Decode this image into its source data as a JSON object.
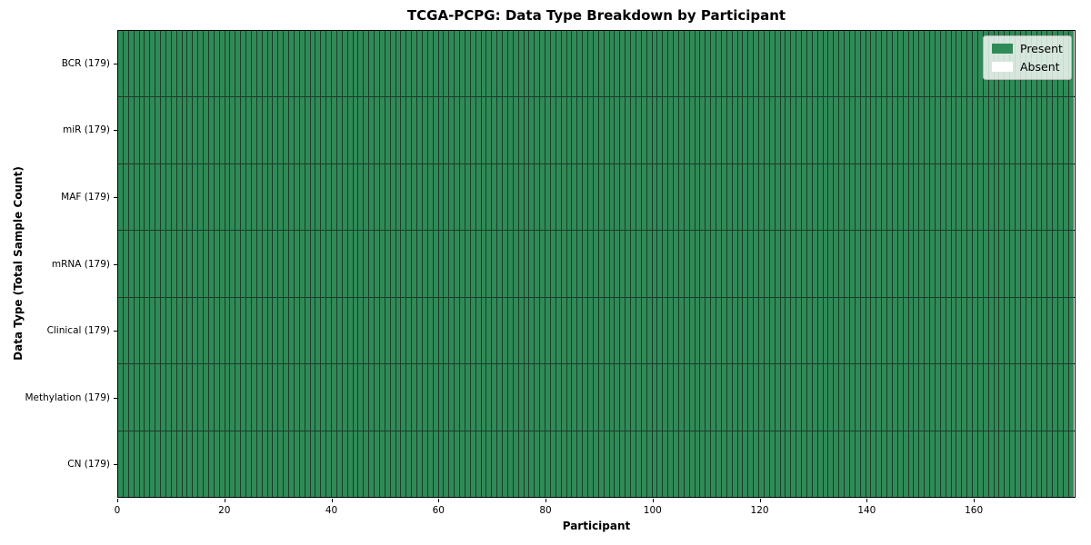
{
  "figure": {
    "title": "TCGA-PCPG: Data Type Breakdown by Participant",
    "xlabel": "Participant",
    "ylabel": "Data Type (Total Sample Count)",
    "background": "#ffffff"
  },
  "legend": {
    "position": "upper right",
    "entries": [
      {
        "label": "Present",
        "color": "#2e8b57"
      },
      {
        "label": "Absent",
        "color": "#ffffff"
      }
    ]
  },
  "axes": {
    "x_ticks": [
      0,
      20,
      40,
      60,
      80,
      100,
      120,
      140,
      160
    ],
    "y_tick_labels": [
      "BCR (179)",
      "miR (179)",
      "MAF (179)",
      "mRNA (179)",
      "Clinical (179)",
      "Methylation (179)",
      "CN (179)"
    ]
  },
  "chart_data": {
    "type": "heatmap",
    "title": "TCGA-PCPG: Data Type Breakdown by Participant",
    "xlabel": "Participant",
    "ylabel": "Data Type (Total Sample Count)",
    "categories": [
      "BCR (179)",
      "miR (179)",
      "MAF (179)",
      "mRNA (179)",
      "Clinical (179)",
      "Methylation (179)",
      "CN (179)"
    ],
    "participant_count": 179,
    "xlim": [
      0,
      179
    ],
    "x_tick_values": [
      0,
      20,
      40,
      60,
      80,
      100,
      120,
      140,
      160
    ],
    "series": [
      {
        "name": "BCR",
        "total_samples": 179,
        "present": 179,
        "absent": 0
      },
      {
        "name": "miR",
        "total_samples": 179,
        "present": 179,
        "absent": 0
      },
      {
        "name": "MAF",
        "total_samples": 179,
        "present": 179,
        "absent": 0
      },
      {
        "name": "mRNA",
        "total_samples": 179,
        "present": 179,
        "absent": 0
      },
      {
        "name": "Clinical",
        "total_samples": 179,
        "present": 179,
        "absent": 0
      },
      {
        "name": "Methylation",
        "total_samples": 179,
        "present": 179,
        "absent": 0
      },
      {
        "name": "CN",
        "total_samples": 179,
        "present": 179,
        "absent": 0
      }
    ],
    "legend_entries": [
      "Present",
      "Absent"
    ],
    "legend_position": "upper right",
    "colors": {
      "present": "#2e8b57",
      "absent": "#ffffff",
      "cell_edge": "#1d3b28",
      "axis": "#000000"
    },
    "cell_edges": true
  }
}
